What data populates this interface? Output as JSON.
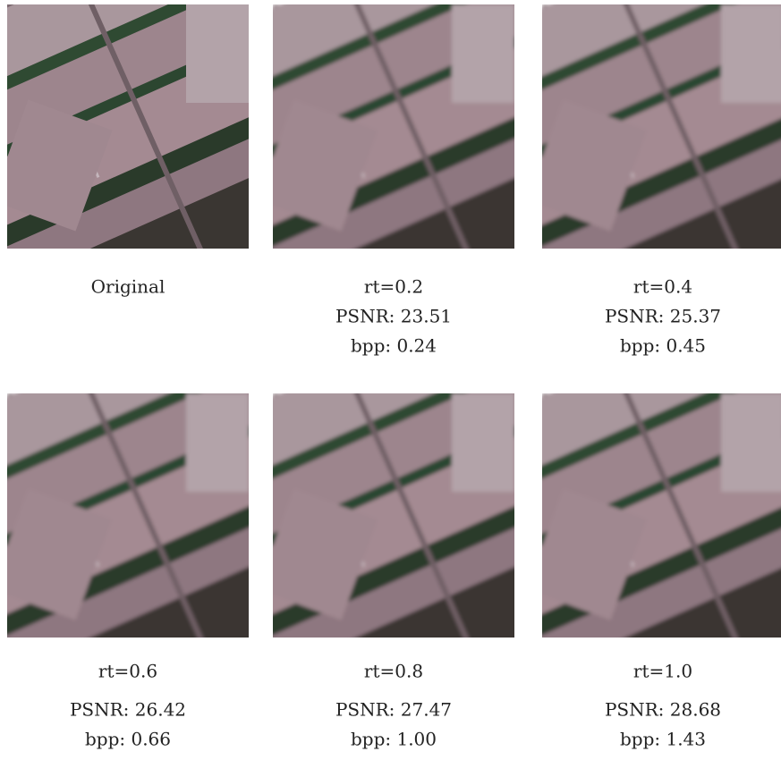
{
  "panels": [
    {
      "caption": [
        "Original"
      ]
    },
    {
      "caption": [
        "rt=0.2",
        "PSNR: 23.51",
        "bpp: 0.24"
      ]
    },
    {
      "caption": [
        "rt=0.4",
        "PSNR: 25.37",
        "bpp: 0.45"
      ]
    },
    {
      "caption": [
        "rt=0.6",
        "PSNR: 26.42",
        "bpp: 0.66"
      ]
    },
    {
      "caption": [
        "rt=0.8",
        "PSNR: 27.47",
        "bpp: 1.00"
      ]
    },
    {
      "caption": [
        "rt=1.0",
        "PSNR: 28.68",
        "bpp: 1.43"
      ]
    }
  ]
}
